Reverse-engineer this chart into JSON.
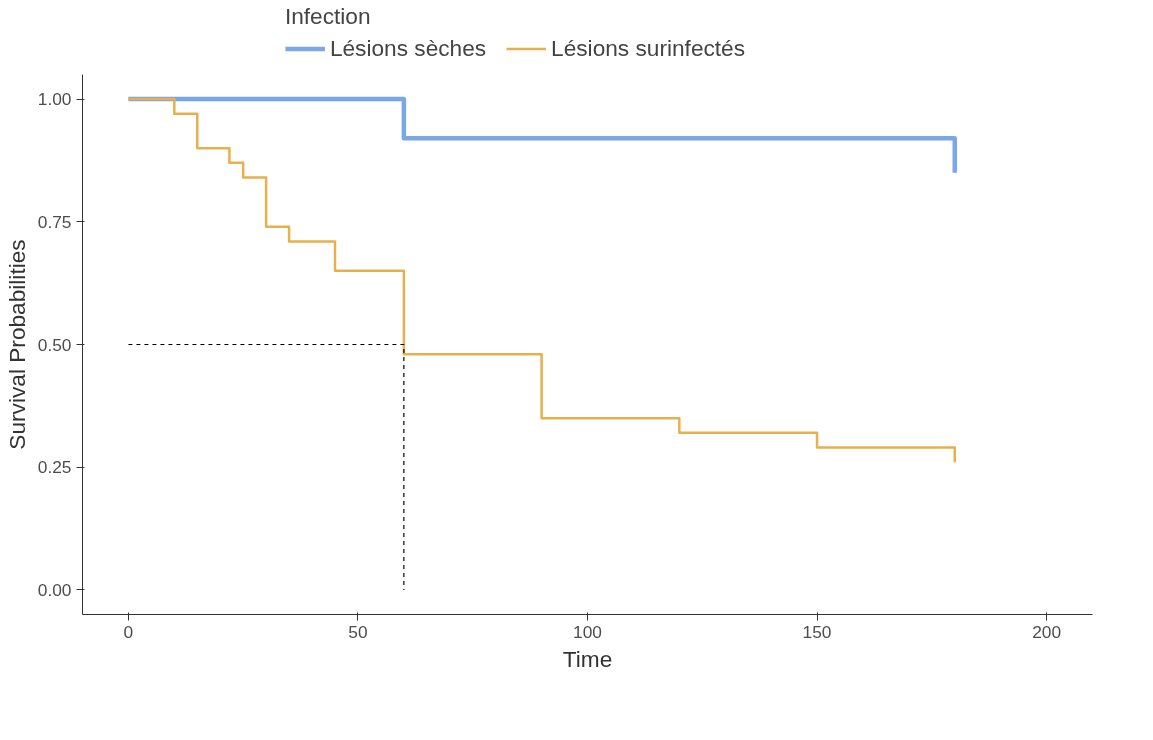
{
  "chart_data": {
    "type": "step",
    "xlabel": "Time",
    "ylabel": "Survival Probabilities",
    "legend_title": "Infection",
    "legend": "top",
    "xlim": [
      -10,
      210
    ],
    "ylim": [
      -0.05,
      1.05
    ],
    "xticks": [
      0,
      50,
      100,
      150,
      200
    ],
    "yticks": [
      {
        "value": 0,
        "label": "0.00"
      },
      {
        "value": 0.25,
        "label": "0.25"
      },
      {
        "value": 0.5,
        "label": "0.50"
      },
      {
        "value": 0.75,
        "label": "0.75"
      },
      {
        "value": 1,
        "label": "1.00"
      }
    ],
    "grid": false,
    "marker": "none",
    "series": [
      {
        "name": "Lésions sèches",
        "color": "#7aa6ea",
        "x": [
          0,
          60,
          180
        ],
        "values": [
          1.0,
          0.92,
          0.85
        ]
      },
      {
        "name": "Lésions surinfectés",
        "color": "#e8b04c",
        "x": [
          0,
          10,
          15,
          22,
          25,
          30,
          35,
          45,
          60,
          90,
          120,
          150,
          180
        ],
        "values": [
          1.0,
          0.97,
          0.9,
          0.87,
          0.84,
          0.74,
          0.71,
          0.65,
          0.48,
          0.35,
          0.32,
          0.29,
          0.26
        ]
      },
      {
        "type": "line",
        "color": "#000000",
        "line_style": "dashed",
        "x": [
          0,
          60,
          60
        ],
        "values": [
          0.5,
          0.5,
          0
        ]
      }
    ]
  }
}
